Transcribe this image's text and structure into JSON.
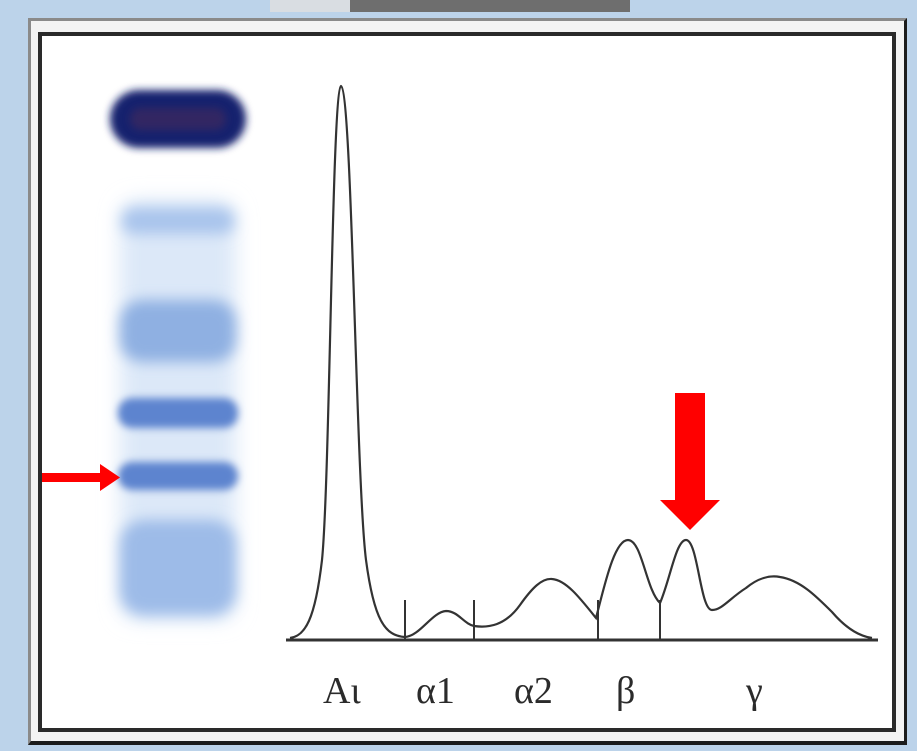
{
  "figure": {
    "fraction_labels": [
      {
        "key": "albumin",
        "text": "Aι"
      },
      {
        "key": "alpha1",
        "text": "α1"
      },
      {
        "key": "alpha2",
        "text": "α2"
      },
      {
        "key": "beta",
        "text": "β"
      },
      {
        "key": "gamma",
        "text": "γ"
      }
    ],
    "colors": {
      "gel_band_dark": "#1a2a7a",
      "gel_band_light": "#8fb3e2",
      "marker_arrow": "#ff0000",
      "trace_line": "#333333"
    },
    "icons": {
      "gel_arrow": "arrow-right-icon",
      "peak_arrow": "arrow-down-icon"
    }
  }
}
